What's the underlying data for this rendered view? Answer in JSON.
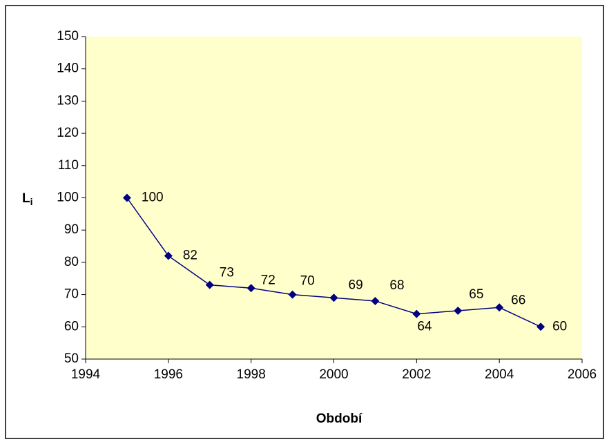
{
  "chart_data": {
    "type": "line",
    "x_label": "Období",
    "y_label": "L",
    "y_label_subscript": "i",
    "x": [
      1995,
      1996,
      1997,
      1998,
      1999,
      2000,
      2001,
      2002,
      2003,
      2004,
      2005
    ],
    "series": [
      {
        "name": "Li",
        "color": "#000080",
        "values": [
          100,
          82,
          73,
          72,
          70,
          69,
          68,
          64,
          65,
          66,
          60
        ]
      }
    ],
    "xlim": [
      1994,
      2006
    ],
    "xticks": [
      1994,
      1996,
      1998,
      2000,
      2002,
      2004,
      2006
    ],
    "ylim": [
      50,
      150
    ],
    "yticks": [
      50,
      60,
      70,
      80,
      90,
      100,
      110,
      120,
      130,
      140,
      150
    ],
    "grid": false,
    "plot_background": "#ffffcc"
  }
}
